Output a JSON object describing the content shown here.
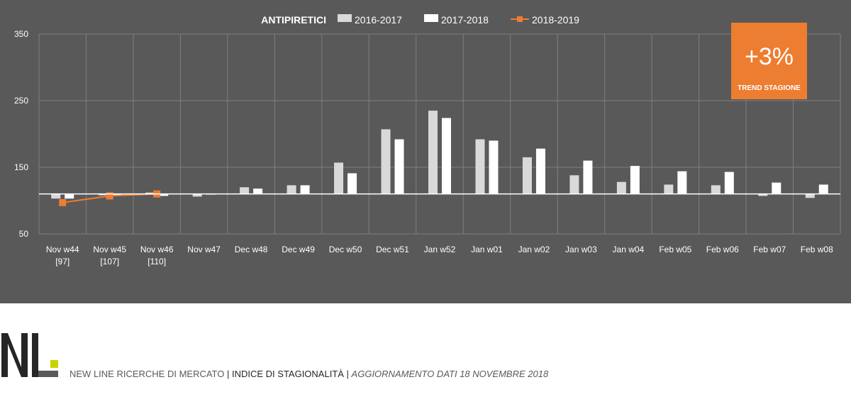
{
  "chart_data": {
    "type": "bar",
    "title": "ANTIPIRETICI",
    "categories": [
      "Nov w44",
      "Nov w45",
      "Nov w46",
      "Nov w47",
      "Dec w48",
      "Dec w49",
      "Dec w50",
      "Dec w51",
      "Jan w52",
      "Jan w01",
      "Jan w02",
      "Jan w03",
      "Jan w04",
      "Feb w05",
      "Feb w06",
      "Feb w07",
      "Feb w08"
    ],
    "category_sublabels": [
      "[97]",
      "[107]",
      "[110]",
      "",
      "",
      "",
      "",
      "",
      "",
      "",
      "",
      "",
      "",
      "",
      "",
      "",
      ""
    ],
    "baseline": 110,
    "ylim": [
      50,
      350
    ],
    "yticks": [
      50,
      150,
      250,
      350
    ],
    "legend_position": "top",
    "series": [
      {
        "name": "2016-2017",
        "type": "bar",
        "color": "#d9d9d9",
        "values": [
          103,
          108,
          112,
          106,
          120,
          123,
          157,
          207,
          235,
          192,
          165,
          138,
          128,
          124,
          123,
          107,
          104
        ]
      },
      {
        "name": "2017-2018",
        "type": "bar",
        "color": "#ffffff",
        "values": [
          103,
          108,
          107,
          110,
          118,
          123,
          141,
          192,
          224,
          190,
          178,
          160,
          152,
          144,
          143,
          127,
          124
        ]
      },
      {
        "name": "2018-2019",
        "type": "line",
        "color": "#ed7d31",
        "values": [
          97,
          107,
          110,
          null,
          null,
          null,
          null,
          null,
          null,
          null,
          null,
          null,
          null,
          null,
          null,
          null,
          null
        ]
      }
    ]
  },
  "trend": {
    "value": "+3%",
    "label": "TREND STAGIONE"
  },
  "footer": {
    "part1": "NEW LINE RICERCHE DI MERCATO",
    "sep1": " | ",
    "part2": "INDICE DI STAGIONALITÀ",
    "sep2": " | ",
    "part3": "AGGIORNAMENTO DATI  18 NOVEMBRE 2018"
  },
  "colors": {
    "panel": "#595959",
    "grid": "#7f7f7f",
    "accent": "#ed7d31",
    "logo_accent": "#c8d400",
    "logo_dark": "#262626"
  }
}
